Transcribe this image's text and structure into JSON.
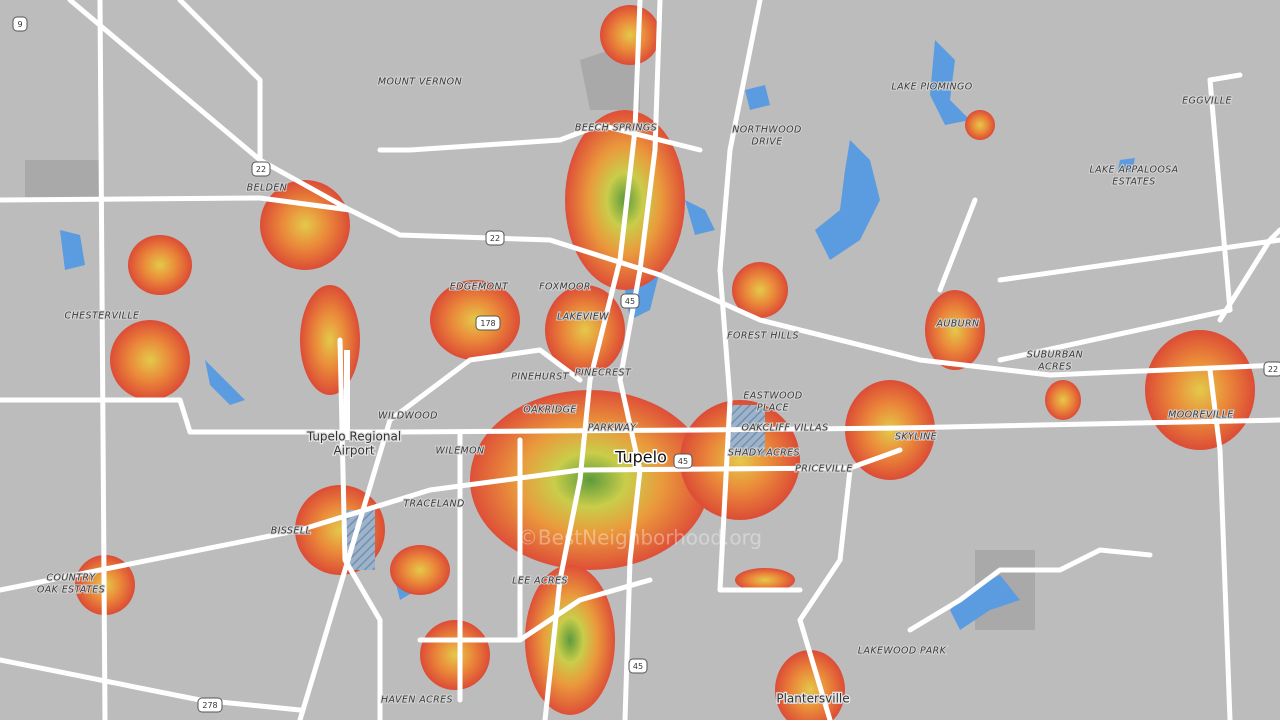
{
  "map": {
    "places": [
      {
        "lines": [
          "MOUNT VERNON"
        ]
      },
      {
        "lines": [
          "BEECH SPRINGS"
        ]
      },
      {
        "lines": [
          "NORTHWOOD",
          "DRIVE"
        ]
      },
      {
        "lines": [
          "LAKE PIOMINGO"
        ]
      },
      {
        "lines": [
          "EGGVILLE"
        ]
      },
      {
        "lines": [
          "LAKE APPALOOSA",
          "ESTATES"
        ]
      },
      {
        "lines": [
          "BELDEN"
        ]
      },
      {
        "lines": [
          "EDGEMONT"
        ]
      },
      {
        "lines": [
          "FOXMOOR"
        ]
      },
      {
        "lines": [
          "CHESTERVILLE"
        ]
      },
      {
        "lines": [
          "LAKEVIEW"
        ]
      },
      {
        "lines": [
          "FOREST HILLS"
        ]
      },
      {
        "lines": [
          "AUBURN"
        ]
      },
      {
        "lines": [
          "SUBURBAN",
          "ACRES"
        ]
      },
      {
        "lines": [
          "PINEHURST"
        ]
      },
      {
        "lines": [
          "PINECREST"
        ]
      },
      {
        "lines": [
          "OAKRIDGE"
        ]
      },
      {
        "lines": [
          "WILDWOOD"
        ]
      },
      {
        "lines": [
          "EASTWOOD",
          "PLACE"
        ]
      },
      {
        "lines": [
          "PARKWAY"
        ]
      },
      {
        "lines": [
          "OAKCLIFF VILLAS"
        ]
      },
      {
        "lines": [
          "SKYLINE"
        ]
      },
      {
        "lines": [
          "MOOREVILLE"
        ]
      },
      {
        "lines": [
          "WILEMON"
        ]
      },
      {
        "lines": [
          "SHADY ACRES"
        ]
      },
      {
        "lines": [
          "PRICEVILLE"
        ]
      },
      {
        "lines": [
          "TRACELAND"
        ]
      },
      {
        "lines": [
          "BISSELL"
        ]
      },
      {
        "lines": [
          "COUNTRY",
          "OAK ESTATES"
        ]
      },
      {
        "lines": [
          "LEE ACRES"
        ]
      },
      {
        "lines": [
          "LAKEWOOD PARK"
        ]
      },
      {
        "lines": [
          "HAVEN ACRES"
        ]
      }
    ],
    "cities": [
      {
        "lines": [
          "Tupelo Regional",
          "Airport"
        ]
      },
      {
        "lines": [
          "Plantersville"
        ]
      }
    ],
    "main_city": "Tupelo",
    "shields": [
      "9",
      "22",
      "22",
      "178",
      "45",
      "45",
      "45",
      "278",
      "22"
    ],
    "watermark": "©BestNeighborhood.org"
  }
}
